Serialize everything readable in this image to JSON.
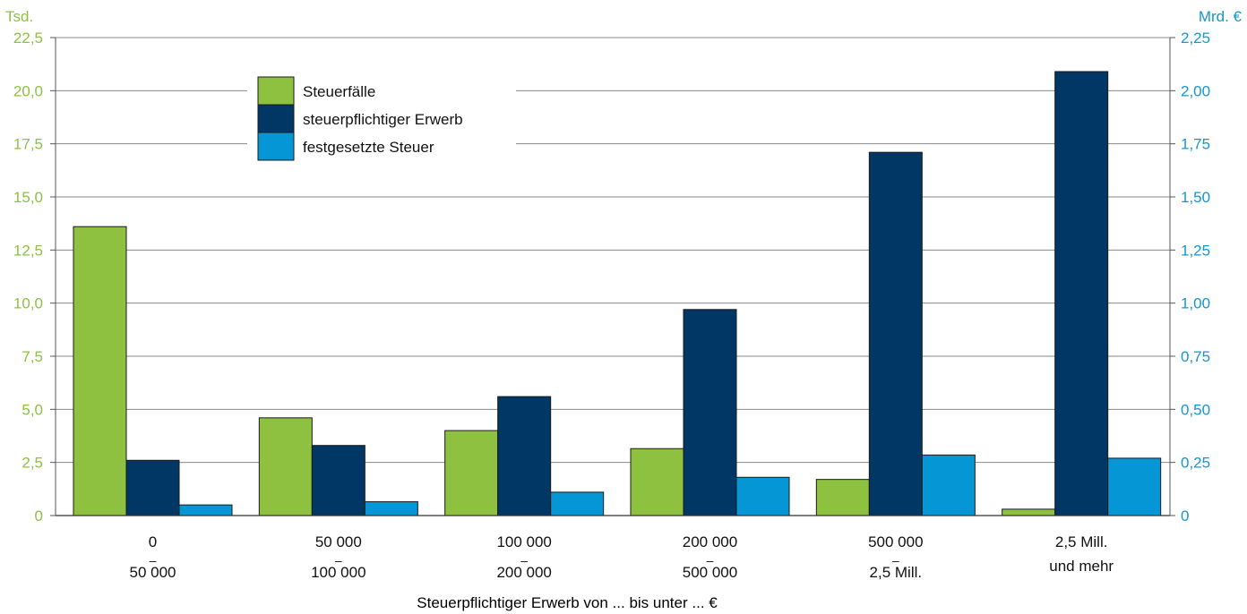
{
  "chart_data": {
    "type": "bar",
    "title": "",
    "xlabel": "Steuerpflichtiger Erwerb von ... bis unter ... €",
    "y_left": {
      "unit": "Tsd.",
      "range": [
        0,
        22.5
      ],
      "ticks": [
        "0",
        "2,5",
        "5,0",
        "7,5",
        "10,0",
        "12,5",
        "15,0",
        "17,5",
        "20,0",
        "22,5"
      ]
    },
    "y_right": {
      "unit": "Mrd. €",
      "range": [
        0,
        2.25
      ],
      "ticks": [
        "0",
        "0,25",
        "0,50",
        "0,75",
        "1,00",
        "1,25",
        "1,50",
        "1,75",
        "2,00",
        "2,25"
      ]
    },
    "grid": true,
    "legend_position": "top-left",
    "categories": [
      [
        "0",
        "–",
        "50 000"
      ],
      [
        "50 000",
        "–",
        "100 000"
      ],
      [
        "100 000",
        "–",
        "200 000"
      ],
      [
        "200 000",
        "–",
        "500 000"
      ],
      [
        "500 000",
        "–",
        "2,5 Mill."
      ],
      [
        "2,5 Mill.",
        "und mehr"
      ]
    ],
    "series": [
      {
        "name": "Steuerfälle",
        "axis": "left",
        "color": "#8dc13f",
        "values": [
          13.6,
          4.6,
          4.0,
          3.15,
          1.7,
          0.3
        ]
      },
      {
        "name": "steuerpflichtiger Erwerb",
        "axis": "right",
        "color": "#003764",
        "values": [
          0.26,
          0.33,
          0.56,
          0.97,
          1.71,
          2.09
        ]
      },
      {
        "name": "festgesetzte Steuer",
        "axis": "right",
        "color": "#0596d6",
        "values": [
          0.05,
          0.065,
          0.11,
          0.18,
          0.285,
          0.27
        ]
      }
    ]
  }
}
